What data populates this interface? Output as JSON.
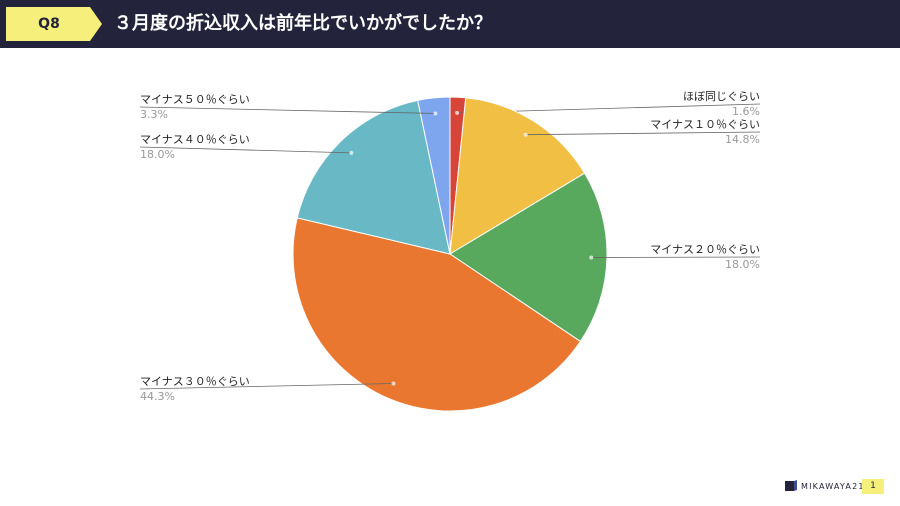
{
  "header": {
    "badge": "Q8",
    "title": "３月度の折込収入は前年比でいかがでしたか？"
  },
  "footer": {
    "logo_text": "MIKAWAYA21",
    "page_number": "1"
  },
  "colors": {
    "header_bg": "#23233b",
    "badge_bg": "#f6ef7c"
  },
  "chart_data": {
    "type": "pie",
    "title": "",
    "slices": [
      {
        "label": "ほぼ同じぐらい",
        "value": 1.6,
        "display": "1.6%",
        "color": "#d64537"
      },
      {
        "label": "マイナス１０％ぐらい",
        "value": 14.8,
        "display": "14.8%",
        "color": "#f0bf43"
      },
      {
        "label": "マイナス２０％ぐらい",
        "value": 18.0,
        "display": "18.0%",
        "color": "#58a85e"
      },
      {
        "label": "マイナス３０％ぐらい",
        "value": 44.3,
        "display": "44.3%",
        "color": "#ea772f"
      },
      {
        "label": "マイナス４０％ぐらい",
        "value": 18.0,
        "display": "18.0%",
        "color": "#68b9c5"
      },
      {
        "label": "マイナス５０％ぐらい",
        "value": 3.3,
        "display": "3.3%",
        "color": "#7ea6ef"
      }
    ],
    "start": "12 o'clock",
    "direction": "clockwise",
    "label_style": "callout lines with label and percentage"
  }
}
